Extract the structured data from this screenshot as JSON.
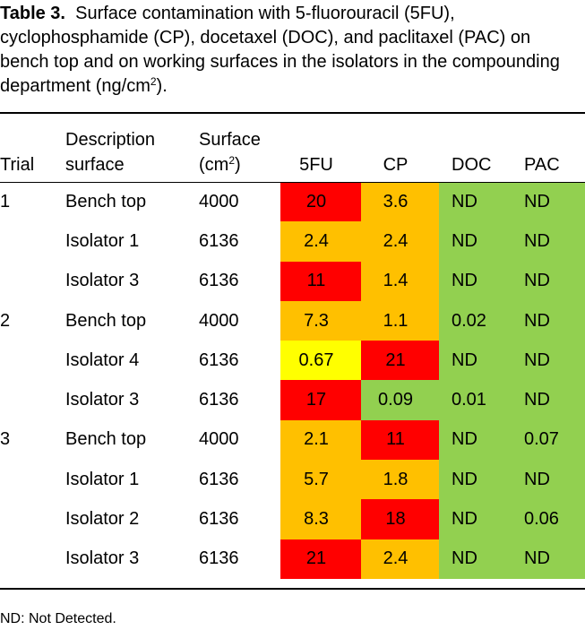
{
  "caption": {
    "label": "Table 3.",
    "text_before_sup": "Surface contamination with 5-fluorouracil (5FU), cyclophosphamide (CP), docetaxel (DOC), and paclitaxel (PAC) on bench top and on working surfaces in the isolators in the compounding department (ng/cm",
    "sup": "2",
    "text_after_sup": ")."
  },
  "columns": {
    "trial": "Trial",
    "description_line1": "Description",
    "description_line2": "surface",
    "surface_line1": "Surface",
    "surface_unit_prefix": "(cm",
    "surface_unit_sup": "2",
    "surface_unit_suffix": ")",
    "fu": "5FU",
    "cp": "CP",
    "doc": "DOC",
    "pac": "PAC"
  },
  "colors": {
    "red": "#ff0000",
    "orange": "#ffc000",
    "yellow": "#ffff00",
    "green": "#92d050"
  },
  "rows": [
    {
      "trial": "1",
      "description": "Bench top",
      "surface": "4000",
      "fu": "20",
      "cp": "3.6",
      "doc": "ND",
      "pac": "ND",
      "fu_color": "red",
      "cp_color": "orange",
      "doc_color": "green",
      "pac_color": "green"
    },
    {
      "trial": "",
      "description": "Isolator 1",
      "surface": "6136",
      "fu": "2.4",
      "cp": "2.4",
      "doc": "ND",
      "pac": "ND",
      "fu_color": "orange",
      "cp_color": "orange",
      "doc_color": "green",
      "pac_color": "green"
    },
    {
      "trial": "",
      "description": "Isolator 3",
      "surface": "6136",
      "fu": "11",
      "cp": "1.4",
      "doc": "ND",
      "pac": "ND",
      "fu_color": "red",
      "cp_color": "orange",
      "doc_color": "green",
      "pac_color": "green"
    },
    {
      "trial": "2",
      "description": "Bench top",
      "surface": "4000",
      "fu": "7.3",
      "cp": "1.1",
      "doc": "0.02",
      "pac": "ND",
      "fu_color": "orange",
      "cp_color": "orange",
      "doc_color": "green",
      "pac_color": "green"
    },
    {
      "trial": "",
      "description": "Isolator 4",
      "surface": "6136",
      "fu": "0.67",
      "cp": "21",
      "doc": "ND",
      "pac": "ND",
      "fu_color": "yellow",
      "cp_color": "red",
      "doc_color": "green",
      "pac_color": "green"
    },
    {
      "trial": "",
      "description": "Isolator 3",
      "surface": "6136",
      "fu": "17",
      "cp": "0.09",
      "doc": "0.01",
      "pac": "ND",
      "fu_color": "red",
      "cp_color": "green",
      "doc_color": "green",
      "pac_color": "green"
    },
    {
      "trial": "3",
      "description": "Bench top",
      "surface": "4000",
      "fu": "2.1",
      "cp": "11",
      "doc": "ND",
      "pac": "0.07",
      "fu_color": "orange",
      "cp_color": "red",
      "doc_color": "green",
      "pac_color": "green"
    },
    {
      "trial": "",
      "description": "Isolator 1",
      "surface": "6136",
      "fu": "5.7",
      "cp": "1.8",
      "doc": "ND",
      "pac": "ND",
      "fu_color": "orange",
      "cp_color": "orange",
      "doc_color": "green",
      "pac_color": "green"
    },
    {
      "trial": "",
      "description": "Isolator 2",
      "surface": "6136",
      "fu": "8.3",
      "cp": "18",
      "doc": "ND",
      "pac": "0.06",
      "fu_color": "orange",
      "cp_color": "red",
      "doc_color": "green",
      "pac_color": "green"
    },
    {
      "trial": "",
      "description": "Isolator 3",
      "surface": "6136",
      "fu": "21",
      "cp": "2.4",
      "doc": "ND",
      "pac": "ND",
      "fu_color": "red",
      "cp_color": "orange",
      "doc_color": "green",
      "pac_color": "green"
    }
  ],
  "footnote": "ND: Not Detected."
}
